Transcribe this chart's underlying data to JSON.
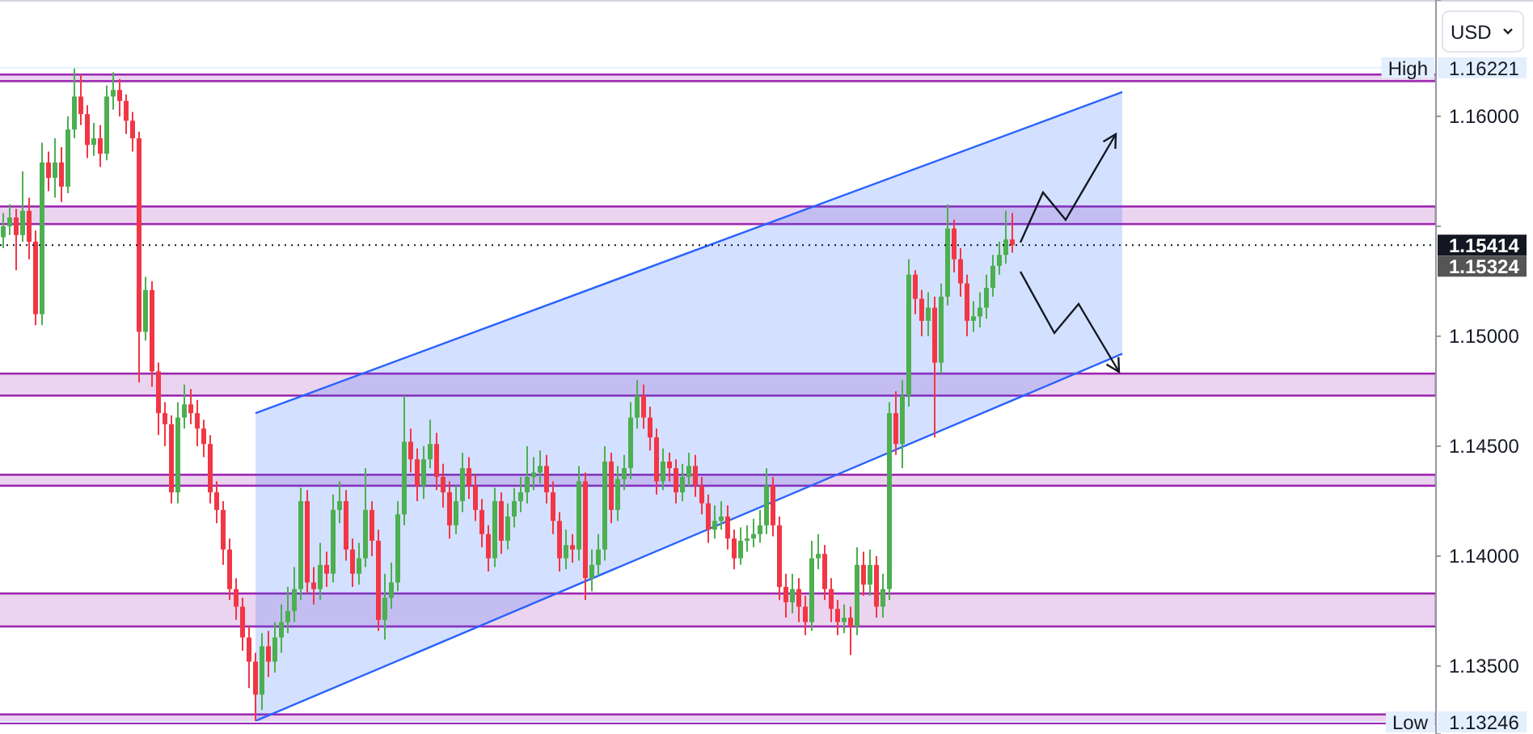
{
  "chart_data": {
    "type": "candlestick",
    "ylim": [
      1.13191,
      1.16529
    ],
    "tick_labels": "y",
    "categories": [
      null,
      null,
      null,
      null,
      null,
      null,
      null,
      null,
      null,
      null,
      null,
      null,
      null,
      null,
      null,
      null,
      null,
      null,
      null,
      null,
      null,
      null,
      null,
      null,
      null,
      null,
      null,
      null,
      null,
      null,
      null,
      null,
      null,
      null,
      null,
      null,
      null,
      null,
      null,
      null,
      null,
      null,
      null,
      null,
      null,
      null,
      null,
      null,
      null,
      null,
      null,
      null,
      null,
      null,
      null,
      null,
      null,
      null,
      null,
      null,
      null,
      null,
      null,
      null,
      null,
      null,
      null,
      null,
      null,
      null,
      null,
      null,
      null,
      null,
      null,
      null,
      null,
      null,
      null,
      null,
      null,
      null,
      null,
      null,
      null,
      null,
      null,
      null,
      null,
      null,
      null,
      null,
      null,
      null,
      null,
      null,
      null,
      null,
      null,
      null,
      null,
      null,
      null,
      null,
      null,
      null,
      null,
      null,
      null,
      null,
      null,
      null,
      null,
      null,
      null,
      null,
      null,
      null,
      null,
      null,
      null,
      null,
      null,
      null,
      null,
      null,
      null,
      null,
      null,
      null,
      null,
      null,
      null,
      null,
      null,
      null,
      null,
      null,
      null,
      null,
      null,
      null,
      null,
      null,
      null,
      null,
      null,
      null,
      null,
      null,
      null,
      null,
      null,
      null,
      null,
      null,
      null,
      null,
      null,
      null,
      null,
      null,
      null,
      null,
      null,
      null,
      null,
      null,
      null,
      null,
      null,
      null,
      null,
      null,
      null,
      null,
      null,
      null,
      null,
      null,
      null,
      null,
      null,
      null,
      null,
      null,
      null,
      null,
      null,
      null,
      null,
      null,
      null,
      null,
      null,
      null,
      null,
      null,
      null,
      null,
      null,
      null,
      null,
      null,
      null,
      null,
      null,
      null,
      null,
      null,
      null,
      null,
      null,
      null,
      null,
      null,
      null,
      null,
      null,
      null,
      null,
      null
    ],
    "yticks": [
      {
        "value": 1.135,
        "label": "1.13500"
      },
      {
        "value": 1.14,
        "label": "1.14000"
      },
      {
        "value": 1.145,
        "label": "1.14500"
      },
      {
        "value": 1.15,
        "label": "1.15000"
      },
      {
        "value": 1.155,
        "label": null
      },
      {
        "value": 1.16,
        "label": "1.16000"
      }
    ],
    "annotations": [
      "USD",
      "1.15324",
      {
        "text": "High",
        "y": 1.16221
      },
      {
        "text": "Low",
        "y": 1.13246
      }
    ],
    "bands": [
      {
        "axis": "y",
        "from": 1.1616,
        "to": 1.1619,
        "color": "#9c27b0"
      },
      {
        "axis": "y",
        "from": 1.1551,
        "to": 1.1559,
        "color": "#9c27b0"
      },
      {
        "axis": "y",
        "from": 1.1473,
        "to": 1.1483,
        "color": "#9c27b0"
      },
      {
        "axis": "y",
        "from": 1.1432,
        "to": 1.1437,
        "color": "#9c27b0"
      },
      {
        "axis": "y",
        "from": 1.1368,
        "to": 1.1383,
        "color": "#9c27b0"
      },
      {
        "axis": "y",
        "from": 1.1324,
        "to": 1.1328,
        "color": "#9c27b0"
      }
    ],
    "ref_lines": [
      {
        "axis": "y",
        "value": 1.16221,
        "label": "1.16221",
        "line_style": "solid",
        "color": "#e3effd"
      },
      {
        "axis": "y",
        "value": 1.13246,
        "label": "1.13246",
        "line_style": "solid",
        "color": "#e3effd"
      },
      {
        "axis": "y",
        "value": 1.15414,
        "label": "1.15414",
        "line_style": "dotted",
        "color": "#131722"
      }
    ],
    "series": [
      {
        "type": "line",
        "color": "#2962ff",
        "values": [
          null,
          null,
          null,
          null,
          null,
          null,
          null,
          null,
          null,
          null,
          null,
          null,
          null,
          null,
          null,
          null,
          null,
          null,
          null,
          null,
          null,
          null,
          null,
          null,
          null,
          null,
          null,
          null,
          null,
          null,
          null,
          null,
          null,
          null,
          null,
          null,
          null,
          null,
          null,
          1.1465,
          null,
          null,
          null,
          null,
          null,
          null,
          null,
          null,
          null,
          null,
          null,
          null,
          null,
          null,
          null,
          null,
          null,
          null,
          null,
          null,
          null,
          null,
          null,
          null,
          null,
          null,
          null,
          null,
          null,
          null,
          null,
          null,
          null,
          null,
          null,
          null,
          null,
          null,
          null,
          null,
          null,
          null,
          null,
          null,
          null,
          null,
          null,
          null,
          null,
          null,
          null,
          null,
          null,
          null,
          null,
          null,
          null,
          null,
          null,
          null,
          null,
          null,
          null,
          null,
          null,
          null,
          null,
          null,
          null,
          null,
          null,
          null,
          null,
          null,
          null,
          null,
          null,
          null,
          null,
          null,
          null,
          null,
          null,
          null,
          null,
          null,
          null,
          null,
          null,
          null,
          null,
          null,
          null,
          null,
          null,
          null,
          null,
          null,
          null,
          null,
          null,
          null,
          null,
          null,
          null,
          null,
          null,
          null,
          null,
          null,
          null,
          null,
          null,
          null,
          null,
          null,
          null,
          null,
          null,
          null,
          null,
          null,
          null,
          null,
          null,
          null,
          null,
          null,
          null,
          null,
          null,
          null,
          null,
          1.1611,
          null,
          null,
          null,
          null,
          null,
          null,
          null,
          null,
          null,
          null,
          null,
          null,
          null,
          null,
          null,
          null,
          null,
          null,
          null,
          null,
          null,
          null,
          null,
          null,
          null,
          null,
          null,
          null,
          null,
          null,
          null,
          null,
          null,
          null,
          null,
          null,
          null,
          null,
          null,
          null,
          null,
          null,
          null,
          null,
          null,
          null,
          null,
          null
        ],
        "lower": [
          null,
          null,
          null,
          null,
          null,
          null,
          null,
          null,
          null,
          null,
          null,
          null,
          null,
          null,
          null,
          null,
          null,
          null,
          null,
          null,
          null,
          null,
          null,
          null,
          null,
          null,
          null,
          null,
          null,
          null,
          null,
          null,
          null,
          null,
          null,
          null,
          null,
          null,
          null,
          1.1325,
          null,
          null,
          null,
          null,
          null,
          null,
          null,
          null,
          null,
          null,
          null,
          null,
          null,
          null,
          null,
          null,
          null,
          null,
          null,
          null,
          null,
          null,
          null,
          null,
          null,
          null,
          null,
          null,
          null,
          null,
          null,
          null,
          null,
          null,
          null,
          null,
          null,
          null,
          null,
          null,
          null,
          null,
          null,
          null,
          null,
          null,
          null,
          null,
          null,
          null,
          null,
          null,
          null,
          null,
          null,
          null,
          null,
          null,
          null,
          null,
          null,
          null,
          null,
          null,
          null,
          null,
          null,
          null,
          null,
          null,
          null,
          null,
          null,
          null,
          null,
          null,
          null,
          null,
          null,
          null,
          null,
          null,
          null,
          null,
          null,
          null,
          null,
          null,
          null,
          null,
          null,
          null,
          null,
          null,
          null,
          null,
          null,
          null,
          null,
          null,
          null,
          null,
          null,
          null,
          null,
          null,
          null,
          null,
          null,
          null,
          null,
          null,
          null,
          null,
          null,
          null,
          null,
          null,
          null,
          null,
          null,
          null,
          null,
          null,
          null,
          null,
          null,
          null,
          null,
          null,
          null,
          null,
          null,
          1.1492,
          null,
          null,
          null,
          null,
          null,
          null,
          null,
          null,
          null,
          null,
          null,
          null,
          null,
          null,
          null,
          null,
          null,
          null,
          null,
          null,
          null,
          null,
          null,
          null,
          null,
          null,
          null,
          null,
          null,
          null,
          null,
          null,
          null,
          null,
          null,
          null,
          null,
          null,
          null,
          null,
          null,
          null,
          null,
          null,
          null,
          null,
          null,
          null
        ],
        "upper": [
          null,
          null,
          null,
          null,
          null,
          null,
          null,
          null,
          null,
          null,
          null,
          null,
          null,
          null,
          null,
          null,
          null,
          null,
          null,
          null,
          null,
          null,
          null,
          null,
          null,
          null,
          null,
          null,
          null,
          null,
          null,
          null,
          null,
          null,
          null,
          null,
          null,
          null,
          null,
          1.1465,
          null,
          null,
          null,
          null,
          null,
          null,
          null,
          null,
          null,
          null,
          null,
          null,
          null,
          null,
          null,
          null,
          null,
          null,
          null,
          null,
          null,
          null,
          null,
          null,
          null,
          null,
          null,
          null,
          null,
          null,
          null,
          null,
          null,
          null,
          null,
          null,
          null,
          null,
          null,
          null,
          null,
          null,
          null,
          null,
          null,
          null,
          null,
          null,
          null,
          null,
          null,
          null,
          null,
          null,
          null,
          null,
          null,
          null,
          null,
          null,
          null,
          null,
          null,
          null,
          null,
          null,
          null,
          null,
          null,
          null,
          null,
          null,
          null,
          null,
          null,
          null,
          null,
          null,
          null,
          null,
          null,
          null,
          null,
          null,
          null,
          null,
          null,
          null,
          null,
          null,
          null,
          null,
          null,
          null,
          null,
          null,
          null,
          null,
          null,
          null,
          null,
          null,
          null,
          null,
          null,
          null,
          null,
          null,
          null,
          null,
          null,
          null,
          null,
          null,
          null,
          null,
          null,
          null,
          null,
          null,
          null,
          null,
          null,
          null,
          null,
          null,
          null,
          null,
          null,
          null,
          null,
          null,
          null,
          1.1611,
          null,
          null,
          null,
          null,
          null,
          null,
          null,
          null,
          null,
          null,
          null,
          null,
          null,
          null,
          null,
          null,
          null,
          null,
          null,
          null,
          null,
          null,
          null,
          null,
          null,
          null,
          null,
          null,
          null,
          null,
          null,
          null,
          null,
          null,
          null,
          null,
          null,
          null,
          null,
          null,
          null,
          null,
          null,
          null,
          null,
          null,
          null,
          null
        ]
      },
      {
        "type": "line",
        "color": "#2962ff",
        "values": [
          null,
          null,
          null,
          null,
          null,
          null,
          null,
          null,
          null,
          null,
          null,
          null,
          null,
          null,
          null,
          null,
          null,
          null,
          null,
          null,
          null,
          null,
          null,
          null,
          null,
          null,
          null,
          null,
          null,
          null,
          null,
          null,
          null,
          null,
          null,
          null,
          null,
          null,
          null,
          1.1325,
          null,
          null,
          null,
          null,
          null,
          null,
          null,
          null,
          null,
          null,
          null,
          null,
          null,
          null,
          null,
          null,
          null,
          null,
          null,
          null,
          null,
          null,
          null,
          null,
          null,
          null,
          null,
          null,
          null,
          null,
          null,
          null,
          null,
          null,
          null,
          null,
          null,
          null,
          null,
          null,
          null,
          null,
          null,
          null,
          null,
          null,
          null,
          null,
          null,
          null,
          null,
          null,
          null,
          null,
          null,
          null,
          null,
          null,
          null,
          null,
          null,
          null,
          null,
          null,
          null,
          null,
          null,
          null,
          null,
          null,
          null,
          null,
          null,
          null,
          null,
          null,
          null,
          null,
          null,
          null,
          null,
          null,
          null,
          null,
          null,
          null,
          null,
          null,
          null,
          null,
          null,
          null,
          null,
          null,
          null,
          null,
          null,
          null,
          null,
          null,
          null,
          null,
          null,
          null,
          null,
          null,
          null,
          null,
          null,
          null,
          null,
          null,
          null,
          null,
          null,
          null,
          null,
          null,
          null,
          null,
          null,
          null,
          null,
          null,
          null,
          null,
          null,
          null,
          null,
          null,
          null,
          null,
          null,
          1.1492,
          null,
          null,
          null,
          null,
          null,
          null,
          null,
          null,
          null,
          null,
          null,
          null,
          null,
          null,
          null,
          null,
          null,
          null,
          null,
          null,
          null,
          null,
          null,
          null,
          null,
          null,
          null,
          null,
          null,
          null,
          null,
          null,
          null,
          null,
          null,
          null,
          null,
          null,
          null,
          null,
          null,
          null,
          null,
          null,
          null,
          null,
          null,
          null
        ]
      }
    ],
    "ohlc": [
      [
        1.1545,
        1.1556,
        1.154,
        1.155
      ],
      [
        1.155,
        1.156,
        1.1546,
        1.1554
      ],
      [
        1.1554,
        1.1558,
        1.153,
        1.1546
      ],
      [
        1.1546,
        1.1575,
        1.1543,
        1.1557
      ],
      [
        1.1557,
        1.1563,
        1.1535,
        1.1543
      ],
      [
        1.1543,
        1.1548,
        1.1505,
        1.151
      ],
      [
        1.151,
        1.1588,
        1.1505,
        1.1579
      ],
      [
        1.1579,
        1.1584,
        1.1566,
        1.1572
      ],
      [
        1.1572,
        1.159,
        1.1563,
        1.1579
      ],
      [
        1.1579,
        1.1586,
        1.1561,
        1.1568
      ],
      [
        1.1568,
        1.16,
        1.1565,
        1.1594
      ],
      [
        1.1594,
        1.16221,
        1.159,
        1.1609
      ],
      [
        1.1609,
        1.1619,
        1.1596,
        1.1601
      ],
      [
        1.1601,
        1.1605,
        1.1581,
        1.1587
      ],
      [
        1.1587,
        1.1597,
        1.1582,
        1.159
      ],
      [
        1.159,
        1.1596,
        1.1577,
        1.1583
      ],
      [
        1.1583,
        1.1614,
        1.158,
        1.1609
      ],
      [
        1.1609,
        1.162,
        1.1603,
        1.1612
      ],
      [
        1.1612,
        1.1617,
        1.16,
        1.1607
      ],
      [
        1.1607,
        1.161,
        1.1592,
        1.1598
      ],
      [
        1.1598,
        1.1602,
        1.1584,
        1.159
      ],
      [
        1.159,
        1.1593,
        1.1479,
        1.1502
      ],
      [
        1.1502,
        1.1527,
        1.1498,
        1.1521
      ],
      [
        1.1521,
        1.1525,
        1.1477,
        1.1484
      ],
      [
        1.1484,
        1.1488,
        1.1455,
        1.1465
      ],
      [
        1.1465,
        1.147,
        1.145,
        1.146
      ],
      [
        1.146,
        1.1464,
        1.1424,
        1.1429
      ],
      [
        1.1429,
        1.147,
        1.1424,
        1.1463
      ],
      [
        1.1463,
        1.1478,
        1.1458,
        1.1469
      ],
      [
        1.1469,
        1.1476,
        1.146,
        1.1465
      ],
      [
        1.1465,
        1.1471,
        1.145,
        1.1458
      ],
      [
        1.1458,
        1.1462,
        1.1445,
        1.1451
      ],
      [
        1.1451,
        1.1455,
        1.1424,
        1.1429
      ],
      [
        1.1429,
        1.1434,
        1.1415,
        1.1421
      ],
      [
        1.1421,
        1.1425,
        1.1396,
        1.1403
      ],
      [
        1.1403,
        1.1408,
        1.138,
        1.1385
      ],
      [
        1.1385,
        1.139,
        1.1371,
        1.1377
      ],
      [
        1.1377,
        1.1381,
        1.1357,
        1.1363
      ],
      [
        1.1363,
        1.1368,
        1.134,
        1.1352
      ],
      [
        1.1352,
        1.1356,
        1.13246,
        1.1337
      ],
      [
        1.1337,
        1.1365,
        1.133,
        1.1359
      ],
      [
        1.1359,
        1.1366,
        1.1345,
        1.1352
      ],
      [
        1.1352,
        1.137,
        1.1347,
        1.1363
      ],
      [
        1.1363,
        1.1378,
        1.1356,
        1.137
      ],
      [
        1.137,
        1.1386,
        1.1365,
        1.1375
      ],
      [
        1.1375,
        1.1395,
        1.137,
        1.1385
      ],
      [
        1.1385,
        1.1431,
        1.138,
        1.1425
      ],
      [
        1.1425,
        1.143,
        1.1383,
        1.1388
      ],
      [
        1.1388,
        1.1395,
        1.1378,
        1.1385
      ],
      [
        1.1385,
        1.1406,
        1.138,
        1.1396
      ],
      [
        1.1396,
        1.1402,
        1.1386,
        1.1392
      ],
      [
        1.1392,
        1.1428,
        1.1388,
        1.1421
      ],
      [
        1.1421,
        1.1434,
        1.1415,
        1.1425
      ],
      [
        1.1425,
        1.143,
        1.1398,
        1.1403
      ],
      [
        1.1403,
        1.1408,
        1.1386,
        1.1392
      ],
      [
        1.1392,
        1.1406,
        1.1387,
        1.1399
      ],
      [
        1.1399,
        1.144,
        1.1395,
        1.1421
      ],
      [
        1.1421,
        1.1425,
        1.14,
        1.1407
      ],
      [
        1.1407,
        1.1412,
        1.1366,
        1.1371
      ],
      [
        1.1371,
        1.1392,
        1.1362,
        1.1381
      ],
      [
        1.1381,
        1.1397,
        1.1376,
        1.1388
      ],
      [
        1.1388,
        1.1425,
        1.1384,
        1.1419
      ],
      [
        1.1419,
        1.1473,
        1.1414,
        1.1452
      ],
      [
        1.1452,
        1.1458,
        1.1438,
        1.1444
      ],
      [
        1.1444,
        1.1449,
        1.1425,
        1.1432
      ],
      [
        1.1432,
        1.145,
        1.1426,
        1.1444
      ],
      [
        1.1444,
        1.1462,
        1.144,
        1.1451
      ],
      [
        1.1451,
        1.1456,
        1.143,
        1.1436
      ],
      [
        1.1436,
        1.1442,
        1.1422,
        1.1429
      ],
      [
        1.1429,
        1.1434,
        1.1408,
        1.1414
      ],
      [
        1.1414,
        1.1432,
        1.141,
        1.1425
      ],
      [
        1.1425,
        1.1447,
        1.142,
        1.144
      ],
      [
        1.144,
        1.1445,
        1.1426,
        1.1432
      ],
      [
        1.1432,
        1.1437,
        1.1416,
        1.1421
      ],
      [
        1.1421,
        1.1426,
        1.1404,
        1.141
      ],
      [
        1.141,
        1.1414,
        1.1393,
        1.1399
      ],
      [
        1.1399,
        1.1431,
        1.1395,
        1.1425
      ],
      [
        1.1425,
        1.1429,
        1.1401,
        1.1407
      ],
      [
        1.1407,
        1.1424,
        1.1403,
        1.1418
      ],
      [
        1.1418,
        1.1431,
        1.1413,
        1.1425
      ],
      [
        1.1425,
        1.1436,
        1.142,
        1.1429
      ],
      [
        1.1429,
        1.145,
        1.1424,
        1.1436
      ],
      [
        1.1436,
        1.1445,
        1.143,
        1.1438
      ],
      [
        1.1438,
        1.1448,
        1.1433,
        1.1441
      ],
      [
        1.1441,
        1.1446,
        1.1424,
        1.1429
      ],
      [
        1.1429,
        1.1434,
        1.141,
        1.1416
      ],
      [
        1.1416,
        1.142,
        1.1393,
        1.1399
      ],
      [
        1.1399,
        1.1412,
        1.1394,
        1.1405
      ],
      [
        1.1405,
        1.141,
        1.1397,
        1.1403
      ],
      [
        1.1403,
        1.1441,
        1.1398,
        1.1434
      ],
      [
        1.1434,
        1.1438,
        1.138,
        1.139
      ],
      [
        1.139,
        1.1403,
        1.1384,
        1.1396
      ],
      [
        1.1396,
        1.141,
        1.1391,
        1.1403
      ],
      [
        1.1403,
        1.145,
        1.1398,
        1.1443
      ],
      [
        1.1443,
        1.1447,
        1.1415,
        1.1421
      ],
      [
        1.1421,
        1.1441,
        1.1416,
        1.1435
      ],
      [
        1.1435,
        1.1446,
        1.143,
        1.144
      ],
      [
        1.144,
        1.147,
        1.1435,
        1.1463
      ],
      [
        1.1463,
        1.148,
        1.1458,
        1.1473
      ],
      [
        1.1473,
        1.1478,
        1.1458,
        1.1463
      ],
      [
        1.1463,
        1.1468,
        1.1448,
        1.1454
      ],
      [
        1.1454,
        1.1458,
        1.1428,
        1.1434
      ],
      [
        1.1434,
        1.1449,
        1.143,
        1.1443
      ],
      [
        1.1443,
        1.1447,
        1.1434,
        1.144
      ],
      [
        1.144,
        1.1444,
        1.1424,
        1.1429
      ],
      [
        1.1429,
        1.1442,
        1.1425,
        1.1436
      ],
      [
        1.1436,
        1.1447,
        1.1432,
        1.1441
      ],
      [
        1.1441,
        1.1446,
        1.1427,
        1.1432
      ],
      [
        1.1432,
        1.1436,
        1.1419,
        1.1424
      ],
      [
        1.1424,
        1.1428,
        1.1406,
        1.1412
      ],
      [
        1.1412,
        1.1423,
        1.1408,
        1.1416
      ],
      [
        1.1416,
        1.1425,
        1.1412,
        1.1418
      ],
      [
        1.1418,
        1.1423,
        1.1403,
        1.1408
      ],
      [
        1.1408,
        1.1412,
        1.1394,
        1.1399
      ],
      [
        1.1399,
        1.1413,
        1.1396,
        1.1407
      ],
      [
        1.1407,
        1.1414,
        1.1402,
        1.1408
      ],
      [
        1.1408,
        1.1417,
        1.1404,
        1.141
      ],
      [
        1.141,
        1.1421,
        1.1406,
        1.1414
      ],
      [
        1.1414,
        1.144,
        1.141,
        1.1432
      ],
      [
        1.1432,
        1.1436,
        1.1409,
        1.1414
      ],
      [
        1.1414,
        1.1418,
        1.138,
        1.1386
      ],
      [
        1.1386,
        1.1392,
        1.1372,
        1.1379
      ],
      [
        1.1379,
        1.1392,
        1.1374,
        1.1385
      ],
      [
        1.1385,
        1.139,
        1.137,
        1.1377
      ],
      [
        1.1377,
        1.1382,
        1.1364,
        1.137
      ],
      [
        1.137,
        1.1407,
        1.1366,
        1.1399
      ],
      [
        1.1399,
        1.141,
        1.1394,
        1.1401
      ],
      [
        1.1401,
        1.1405,
        1.138,
        1.1385
      ],
      [
        1.1385,
        1.139,
        1.137,
        1.1376
      ],
      [
        1.1376,
        1.138,
        1.1364,
        1.137
      ],
      [
        1.137,
        1.1378,
        1.1365,
        1.1372
      ],
      [
        1.1372,
        1.1377,
        1.1355,
        1.1368
      ],
      [
        1.1368,
        1.1404,
        1.1364,
        1.1396
      ],
      [
        1.1396,
        1.1402,
        1.1382,
        1.1387
      ],
      [
        1.1387,
        1.1403,
        1.1382,
        1.1396
      ],
      [
        1.1396,
        1.14,
        1.1372,
        1.1377
      ],
      [
        1.1377,
        1.1392,
        1.1372,
        1.1385
      ],
      [
        1.1385,
        1.147,
        1.138,
        1.1465
      ],
      [
        1.1465,
        1.1475,
        1.1446,
        1.1451
      ],
      [
        1.1451,
        1.148,
        1.144,
        1.1473
      ],
      [
        1.1473,
        1.1535,
        1.1468,
        1.1528
      ],
      [
        1.1528,
        1.153,
        1.151,
        1.1517
      ],
      [
        1.1517,
        1.1521,
        1.15,
        1.1507
      ],
      [
        1.1507,
        1.152,
        1.15,
        1.1513
      ],
      [
        1.1513,
        1.1518,
        1.1454,
        1.1488
      ],
      [
        1.1488,
        1.1524,
        1.1483,
        1.1518
      ],
      [
        1.1518,
        1.156,
        1.1514,
        1.1549
      ],
      [
        1.1549,
        1.1553,
        1.1529,
        1.1535
      ],
      [
        1.1535,
        1.154,
        1.1518,
        1.1524
      ],
      [
        1.1524,
        1.1528,
        1.15,
        1.1507
      ],
      [
        1.1507,
        1.1516,
        1.1502,
        1.1509
      ],
      [
        1.1509,
        1.152,
        1.1504,
        1.1513
      ],
      [
        1.1513,
        1.1528,
        1.1508,
        1.1522
      ],
      [
        1.1522,
        1.1537,
        1.1518,
        1.1532
      ],
      [
        1.1532,
        1.1543,
        1.1528,
        1.1537
      ],
      [
        1.1537,
        1.1557,
        1.1533,
        1.1544
      ],
      [
        1.1544,
        1.1556,
        1.1538,
        1.15414
      ],
      null,
      null,
      null,
      null,
      null,
      null,
      null,
      null,
      null,
      null,
      null,
      null,
      null,
      null,
      null,
      null,
      null,
      null,
      null,
      null,
      null,
      null,
      null,
      null,
      null,
      null,
      null,
      null,
      null,
      null,
      null,
      null,
      null,
      null,
      null,
      null,
      null,
      null,
      null,
      null,
      null,
      null,
      null,
      null,
      null,
      null,
      null,
      null,
      null,
      null,
      null,
      null,
      null,
      null,
      null,
      null,
      null,
      null,
      null,
      null,
      null,
      null,
      null,
      null,
      null
    ],
    "colors": [
      "#4caf50",
      "#4caf50",
      "#f23645",
      "#4caf50",
      "#f23645",
      "#f23645",
      "#4caf50",
      "#f23645",
      "#4caf50",
      "#f23645",
      "#4caf50",
      "#4caf50",
      "#f23645",
      "#f23645",
      "#4caf50",
      "#f23645",
      "#4caf50",
      "#4caf50",
      "#f23645",
      "#f23645",
      "#f23645",
      "#f23645",
      "#4caf50",
      "#f23645",
      "#f23645",
      "#f23645",
      "#f23645",
      "#4caf50",
      "#4caf50",
      "#f23645",
      "#f23645",
      "#f23645",
      "#f23645",
      "#f23645",
      "#f23645",
      "#f23645",
      "#f23645",
      "#f23645",
      "#f23645",
      "#f23645",
      "#4caf50",
      "#f23645",
      "#4caf50",
      "#4caf50",
      "#4caf50",
      "#4caf50",
      "#4caf50",
      "#f23645",
      "#f23645",
      "#4caf50",
      "#f23645",
      "#4caf50",
      "#4caf50",
      "#f23645",
      "#f23645",
      "#4caf50",
      "#4caf50",
      "#f23645",
      "#f23645",
      "#4caf50",
      "#4caf50",
      "#4caf50",
      "#4caf50",
      "#f23645",
      "#f23645",
      "#4caf50",
      "#4caf50",
      "#f23645",
      "#f23645",
      "#f23645",
      "#4caf50",
      "#4caf50",
      "#f23645",
      "#f23645",
      "#f23645",
      "#f23645",
      "#4caf50",
      "#f23645",
      "#4caf50",
      "#4caf50",
      "#4caf50",
      "#4caf50",
      "#4caf50",
      "#4caf50",
      "#f23645",
      "#f23645",
      "#f23645",
      "#4caf50",
      "#f23645",
      "#4caf50",
      "#f23645",
      "#4caf50",
      "#4caf50",
      "#4caf50",
      "#f23645",
      "#4caf50",
      "#4caf50",
      "#4caf50",
      "#4caf50",
      "#f23645",
      "#f23645",
      "#f23645",
      "#4caf50",
      "#f23645",
      "#f23645",
      "#4caf50",
      "#4caf50",
      "#f23645",
      "#f23645",
      "#f23645",
      "#4caf50",
      "#4caf50",
      "#f23645",
      "#f23645",
      "#4caf50",
      "#4caf50",
      "#4caf50",
      "#4caf50",
      "#4caf50",
      "#f23645",
      "#f23645",
      "#f23645",
      "#4caf50",
      "#f23645",
      "#f23645",
      "#4caf50",
      "#4caf50",
      "#f23645",
      "#f23645",
      "#f23645",
      "#4caf50",
      "#f23645",
      "#4caf50",
      "#f23645",
      "#4caf50",
      "#f23645",
      "#4caf50",
      "#4caf50",
      "#f23645",
      "#4caf50",
      "#4caf50",
      "#f23645",
      "#f23645",
      "#4caf50",
      "#f23645",
      "#4caf50",
      "#4caf50",
      "#f23645",
      "#f23645",
      "#f23645",
      "#4caf50",
      "#4caf50",
      "#4caf50",
      "#4caf50",
      "#4caf50",
      "#4caf50",
      "#f23645",
      null,
      null,
      null,
      null,
      null,
      null,
      null,
      null,
      null,
      null,
      null,
      null,
      null,
      null,
      null,
      null,
      null,
      null,
      null,
      null,
      null,
      null,
      null,
      null,
      null,
      null,
      null,
      null,
      null,
      null,
      null,
      null,
      null,
      null,
      null,
      null,
      null,
      null,
      null,
      null,
      null,
      null,
      null,
      null,
      null,
      null,
      null,
      null,
      null,
      null,
      null,
      null,
      null,
      null,
      null,
      null,
      null,
      null,
      null,
      null,
      null,
      null,
      null,
      null,
      null
    ]
  }
}
